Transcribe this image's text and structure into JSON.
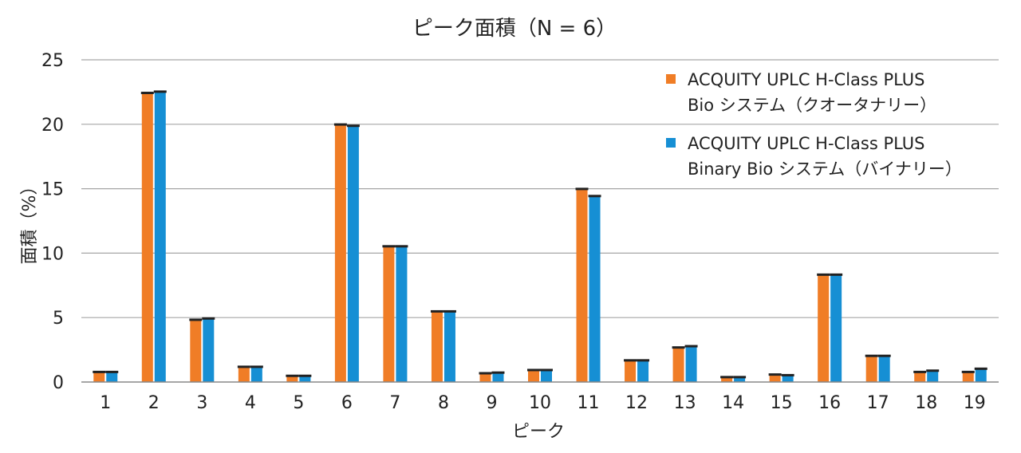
{
  "chart_data": {
    "type": "bar",
    "title": "ピーク面積（N = 6）",
    "xlabel": "ピーク",
    "ylabel": "面積（%）",
    "ylim": [
      0,
      25
    ],
    "yticks": [
      0,
      5,
      10,
      15,
      20,
      25
    ],
    "grid": true,
    "legend_position": "top-right",
    "categories": [
      "1",
      "2",
      "3",
      "4",
      "5",
      "6",
      "7",
      "8",
      "9",
      "10",
      "11",
      "12",
      "13",
      "14",
      "15",
      "16",
      "17",
      "18",
      "19"
    ],
    "series": [
      {
        "name_lines": [
          "ACQUITY UPLC H-Class PLUS",
          "Bio システム（クオータナリー）"
        ],
        "color": "#F07D26",
        "values": [
          0.75,
          22.4,
          4.8,
          1.15,
          0.45,
          19.95,
          10.5,
          5.45,
          0.65,
          0.9,
          14.95,
          1.65,
          2.65,
          0.35,
          0.55,
          8.3,
          2.0,
          0.75,
          0.75
        ]
      },
      {
        "name_lines": [
          "ACQUITY UPLC H-Class PLUS",
          "Binary Bio システム（バイナリー）"
        ],
        "color": "#168FD4",
        "values": [
          0.75,
          22.5,
          4.9,
          1.15,
          0.45,
          19.85,
          10.5,
          5.45,
          0.7,
          0.9,
          14.4,
          1.65,
          2.75,
          0.35,
          0.5,
          8.3,
          2.0,
          0.85,
          1.0
        ]
      }
    ],
    "error_bar_color": "#222222"
  }
}
